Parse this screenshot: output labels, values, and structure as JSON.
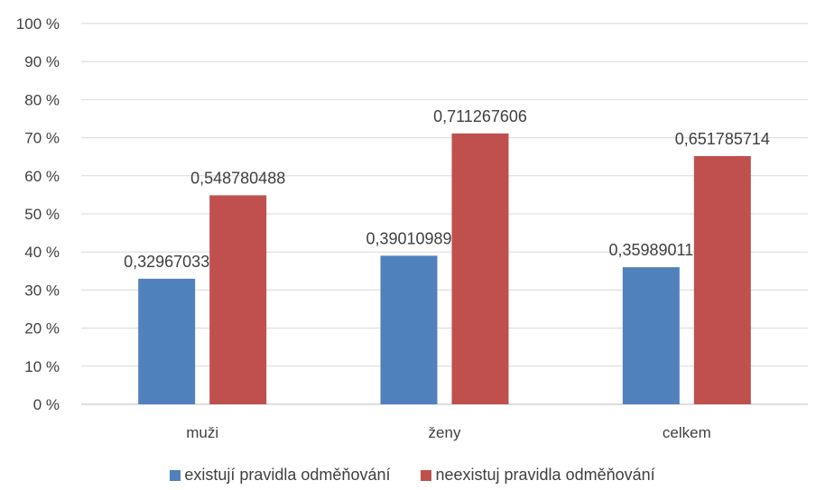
{
  "chart_data": {
    "type": "bar",
    "categories": [
      "muži",
      "ženy",
      "celkem"
    ],
    "series": [
      {
        "name": "existují pravidla odměňování",
        "color": "#4f81bd",
        "values": [
          0.32967033,
          0.39010989,
          0.35989011
        ],
        "labels": [
          "0,32967033",
          "0,39010989",
          "0,35989011"
        ]
      },
      {
        "name": "neexistuj pravidla odměňování",
        "color": "#c0504d",
        "values": [
          0.548780488,
          0.711267606,
          0.651785714
        ],
        "labels": [
          "0,548780488",
          "0,711267606",
          "0,651785714"
        ]
      }
    ],
    "ylim": [
      0,
      1
    ],
    "yticks": [
      "0 %",
      "10 %",
      "20 %",
      "30 %",
      "40 %",
      "50 %",
      "60 %",
      "70 %",
      "80 %",
      "90 %",
      "100 %"
    ],
    "grid": true,
    "legend": "bottom",
    "title": "",
    "xlabel": "",
    "ylabel": ""
  }
}
